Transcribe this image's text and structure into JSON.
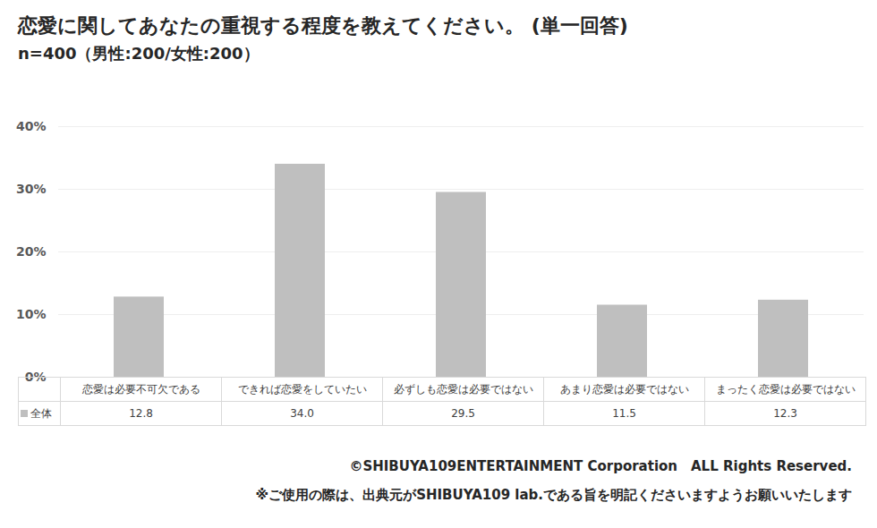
{
  "chart_data": {
    "type": "bar",
    "title": "恋愛に関してあなたの重視する程度を教えてください。 (単一回答)",
    "subtitle": "n=400（男性:200/女性:200）",
    "categories": [
      "恋愛は必要不可欠である",
      "できれば恋愛をしていたい",
      "必ずしも恋愛は必要ではない",
      "あまり恋愛は必要ではない",
      "まったく恋愛は必要ではない"
    ],
    "series": [
      {
        "name": "全体",
        "color": "#bfbfbf",
        "values": [
          12.8,
          34.0,
          29.5,
          11.5,
          12.3
        ],
        "value_labels": [
          "12.8",
          "34.0",
          "29.5",
          "11.5",
          "12.3"
        ]
      }
    ],
    "ylim": [
      0,
      40
    ],
    "yticks": [
      {
        "value": 0,
        "label": "0%"
      },
      {
        "value": 10,
        "label": "10%"
      },
      {
        "value": 20,
        "label": "20%"
      },
      {
        "value": 30,
        "label": "30%"
      },
      {
        "value": 40,
        "label": "40%"
      }
    ],
    "grid": true,
    "annotations": [
      "©SHIBUYA109ENTERTAINMENT Corporation　ALL Rights Reserved.",
      "※ご使用の際は、出典元がSHIBUYA109 lab.である旨を明記くださいますようお願いいたします"
    ]
  }
}
